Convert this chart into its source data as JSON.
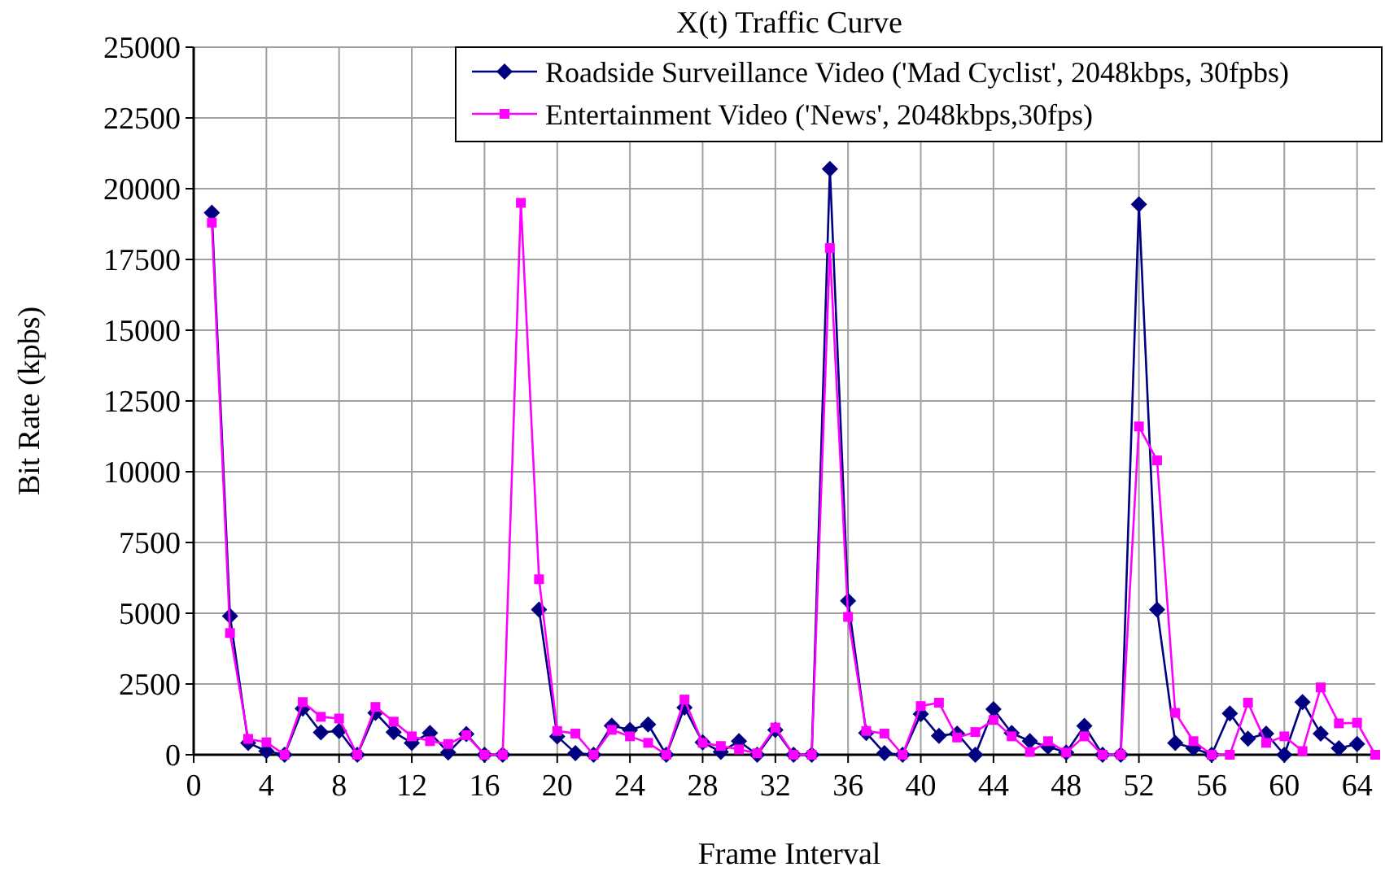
{
  "chart_data": {
    "type": "line",
    "title": "X(t) Traffic Curve",
    "xlabel": "Frame Interval",
    "ylabel": "Bit Rate (kpbs)",
    "x": [
      1,
      2,
      3,
      4,
      5,
      6,
      7,
      8,
      9,
      10,
      11,
      12,
      13,
      14,
      15,
      16,
      17,
      18,
      19,
      20,
      21,
      22,
      23,
      24,
      25,
      26,
      27,
      28,
      29,
      30,
      31,
      32,
      33,
      34,
      35,
      36,
      37,
      38,
      39,
      40,
      41,
      42,
      43,
      44,
      45,
      46,
      47,
      48,
      49,
      50,
      51,
      52,
      53,
      54,
      55,
      56,
      57,
      58,
      59,
      60,
      61,
      62,
      63,
      64,
      65
    ],
    "series": [
      {
        "name": "Roadside Surveillance Video ('Mad Cyclist', 2048kbps, 30fpbs)",
        "color": "#000080",
        "marker": "diamond",
        "values": [
          19150,
          4900,
          420,
          130,
          0,
          1630,
          790,
          840,
          0,
          1480,
          800,
          420,
          770,
          80,
          730,
          0,
          0,
          null,
          5130,
          650,
          60,
          0,
          1030,
          880,
          1070,
          0,
          1670,
          440,
          100,
          480,
          0,
          880,
          0,
          0,
          20700,
          5440,
          770,
          60,
          0,
          1440,
          670,
          750,
          0,
          1610,
          770,
          480,
          290,
          80,
          1020,
          0,
          0,
          19450,
          5130,
          420,
          230,
          0,
          1460,
          570,
          750,
          0,
          1860,
          750,
          230,
          380,
          null
        ]
      },
      {
        "name": "Entertainment Video ('News', 2048kbps,30fps)",
        "color": "#ff00ff",
        "marker": "square",
        "values": [
          18800,
          4300,
          560,
          440,
          0,
          1860,
          1340,
          1280,
          0,
          1690,
          1170,
          650,
          480,
          380,
          690,
          0,
          0,
          19500,
          6200,
          840,
          750,
          0,
          880,
          650,
          420,
          0,
          1950,
          420,
          310,
          190,
          50,
          960,
          0,
          0,
          17900,
          4870,
          840,
          750,
          0,
          1720,
          1840,
          610,
          800,
          1230,
          650,
          100,
          480,
          80,
          650,
          0,
          0,
          11600,
          10400,
          1480,
          480,
          0,
          0,
          1840,
          420,
          650,
          130,
          2380,
          1110,
          1130,
          0
        ]
      }
    ],
    "xlim": [
      0,
      65
    ],
    "xticks": [
      0,
      4,
      8,
      12,
      16,
      20,
      24,
      28,
      32,
      36,
      40,
      44,
      48,
      52,
      56,
      60,
      64
    ],
    "ylim": [
      0,
      25000
    ],
    "yticks": [
      0,
      2500,
      5000,
      7500,
      10000,
      12500,
      15000,
      17500,
      20000,
      22500,
      25000
    ],
    "grid": true,
    "legend": "top right",
    "line_style": "solid"
  }
}
